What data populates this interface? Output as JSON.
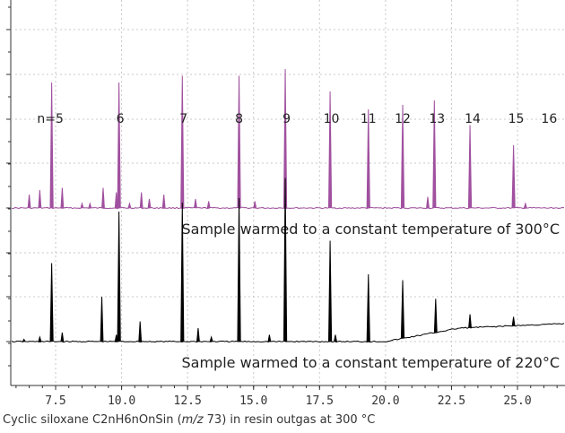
{
  "chart_data": {
    "type": "line",
    "title": "",
    "xlabel": "",
    "ylabel": "",
    "xlim": [
      5.8,
      26.8
    ],
    "xticks": [
      "7.5",
      "10.0",
      "12.5",
      "15.0",
      "17.5",
      "20.0",
      "22.5",
      "25.0"
    ],
    "xtick_values": [
      7.5,
      10.0,
      12.5,
      15.0,
      17.5,
      20.0,
      22.5,
      25.0
    ],
    "grid": true,
    "series": [
      {
        "name": "Sample warmed to a constant temperature of 300°C",
        "color": "#a0509f",
        "baseline_offset": 1.0,
        "peaks": [
          {
            "x": 6.5,
            "h": 0.06
          },
          {
            "x": 6.9,
            "h": 0.08
          },
          {
            "x": 7.35,
            "h": 0.56
          },
          {
            "x": 7.75,
            "h": 0.09
          },
          {
            "x": 8.5,
            "h": 0.02
          },
          {
            "x": 8.8,
            "h": 0.02
          },
          {
            "x": 9.3,
            "h": 0.09
          },
          {
            "x": 9.8,
            "h": 0.07
          },
          {
            "x": 9.9,
            "h": 0.56
          },
          {
            "x": 10.3,
            "h": 0.02
          },
          {
            "x": 10.75,
            "h": 0.07
          },
          {
            "x": 11.05,
            "h": 0.04
          },
          {
            "x": 11.6,
            "h": 0.06
          },
          {
            "x": 12.3,
            "h": 0.59
          },
          {
            "x": 12.8,
            "h": 0.04
          },
          {
            "x": 13.3,
            "h": 0.03
          },
          {
            "x": 14.45,
            "h": 0.59
          },
          {
            "x": 15.05,
            "h": 0.03
          },
          {
            "x": 16.2,
            "h": 0.62
          },
          {
            "x": 17.9,
            "h": 0.52
          },
          {
            "x": 19.35,
            "h": 0.44
          },
          {
            "x": 20.65,
            "h": 0.46
          },
          {
            "x": 21.6,
            "h": 0.05
          },
          {
            "x": 21.85,
            "h": 0.48
          },
          {
            "x": 23.2,
            "h": 0.37
          },
          {
            "x": 24.85,
            "h": 0.28
          },
          {
            "x": 25.3,
            "h": 0.02
          }
        ]
      },
      {
        "name": "Sample warmed to a constant temperature of 220°C",
        "color": "#000000",
        "baseline_offset": 0.0,
        "peaks": [
          {
            "x": 6.3,
            "h": 0.01
          },
          {
            "x": 6.9,
            "h": 0.02
          },
          {
            "x": 7.35,
            "h": 0.35
          },
          {
            "x": 7.75,
            "h": 0.04
          },
          {
            "x": 9.25,
            "h": 0.2
          },
          {
            "x": 9.8,
            "h": 0.03
          },
          {
            "x": 9.9,
            "h": 0.58
          },
          {
            "x": 10.7,
            "h": 0.09
          },
          {
            "x": 12.3,
            "h": 0.62
          },
          {
            "x": 12.9,
            "h": 0.06
          },
          {
            "x": 13.4,
            "h": 0.02
          },
          {
            "x": 14.45,
            "h": 0.64
          },
          {
            "x": 15.6,
            "h": 0.03
          },
          {
            "x": 16.2,
            "h": 0.73
          },
          {
            "x": 17.9,
            "h": 0.45
          },
          {
            "x": 18.1,
            "h": 0.03
          },
          {
            "x": 19.35,
            "h": 0.3
          },
          {
            "x": 20.65,
            "h": 0.26
          },
          {
            "x": 21.9,
            "h": 0.15
          },
          {
            "x": 23.2,
            "h": 0.06
          },
          {
            "x": 24.85,
            "h": 0.04
          }
        ],
        "baseline_ramp": [
          [
            20.0,
            0.0
          ],
          [
            22.8,
            0.06
          ],
          [
            26.8,
            0.08
          ]
        ]
      }
    ],
    "annotations": [
      {
        "text": "n=5",
        "x": 7.3
      },
      {
        "text": "6",
        "x": 9.95
      },
      {
        "text": "7",
        "x": 12.35
      },
      {
        "text": "8",
        "x": 14.45
      },
      {
        "text": "9",
        "x": 16.25
      },
      {
        "text": "10",
        "x": 17.95
      },
      {
        "text": "11",
        "x": 19.35
      },
      {
        "text": "12",
        "x": 20.65
      },
      {
        "text": "13",
        "x": 21.95
      },
      {
        "text": "14",
        "x": 23.3
      },
      {
        "text": "15",
        "x": 24.95
      },
      {
        "text": "16",
        "x": 26.2
      }
    ]
  },
  "caption": {
    "before": "Cyclic siloxane C2nH6nOnSin (",
    "italic": "m/z",
    "after": " 73) in resin outgas at 300 °C"
  }
}
